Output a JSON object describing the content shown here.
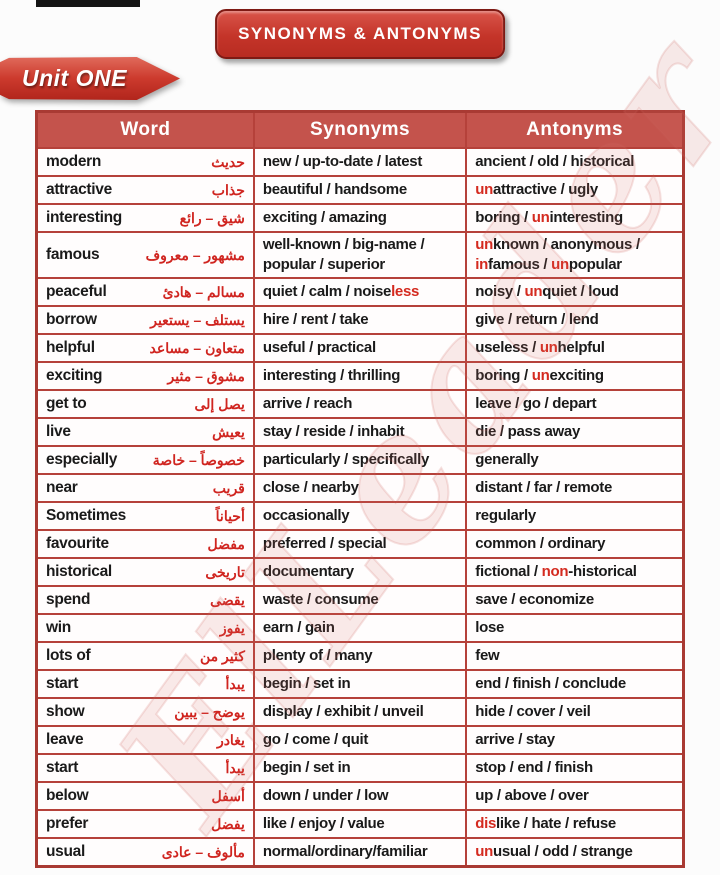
{
  "header": {
    "title": "SYNONYMS & ANTONYMS",
    "unit": "Unit ONE"
  },
  "watermark": "ElLeader",
  "colors": {
    "badge_red": "#c43429",
    "table_border_red": "#b5413a",
    "header_row_bg": "#c4534c",
    "highlight_red": "#d42a1f",
    "arabic_red": "#d02520",
    "text_black": "#1a1a1a"
  },
  "table": {
    "headers": [
      "Word",
      "Synonyms",
      "Antonyms"
    ],
    "rows": [
      {
        "word": "modern",
        "arabic": "حديث",
        "synonyms": "new / up-to-date / latest",
        "antonyms": "ancient / old / historical"
      },
      {
        "word": "attractive",
        "arabic": "جذاب",
        "synonyms": "beautiful / handsome",
        "antonyms": "[un]attractive / ugly"
      },
      {
        "word": "interesting",
        "arabic": "شيق – رائع",
        "synonyms": "exciting / amazing",
        "antonyms": "boring / [un]interesting"
      },
      {
        "word": "famous",
        "arabic": "مشهور – معروف",
        "synonyms": "well-known / big-name / popular / superior",
        "antonyms": "[un]known / anonymous / [in]famous / [un]popular"
      },
      {
        "word": "peaceful",
        "arabic": "مسالم – هادئ",
        "synonyms": "quiet / calm / noise[less]",
        "antonyms": "noisy / [un]quiet / loud"
      },
      {
        "word": "borrow",
        "arabic": "يستلف – يستعير",
        "synonyms": "hire / rent / take",
        "antonyms": "give / return / lend"
      },
      {
        "word": "helpful",
        "arabic": "متعاون – مساعد",
        "synonyms": "useful / practical",
        "antonyms": "useless / [un]helpful"
      },
      {
        "word": "exciting",
        "arabic": "مشوق – مثير",
        "synonyms": "interesting / thrilling",
        "antonyms": "boring / [un]exciting"
      },
      {
        "word": "get to",
        "arabic": "يصل إلى",
        "synonyms": "arrive / reach",
        "antonyms": "leave / go / depart"
      },
      {
        "word": "live",
        "arabic": "يعيش",
        "synonyms": "stay / reside / inhabit",
        "antonyms": "die / pass away"
      },
      {
        "word": "especially",
        "arabic": "خصوصاً – خاصة",
        "synonyms": "particularly / specifically",
        "antonyms": "generally"
      },
      {
        "word": "near",
        "arabic": "قريب",
        "synonyms": "close / nearby",
        "antonyms": "distant / far / remote"
      },
      {
        "word": "Sometimes",
        "arabic": "أحياناً",
        "synonyms": "occasionally",
        "antonyms": "regularly"
      },
      {
        "word": "favourite",
        "arabic": "مفضل",
        "synonyms": "preferred / special",
        "antonyms": "common / ordinary"
      },
      {
        "word": "historical",
        "arabic": "تاريخى",
        "synonyms": "documentary",
        "antonyms": "fictional / [non]-historical"
      },
      {
        "word": "spend",
        "arabic": "يقضى",
        "synonyms": "waste / consume",
        "antonyms": "save / economize"
      },
      {
        "word": "win",
        "arabic": "يفوز",
        "synonyms": "earn / gain",
        "antonyms": "lose"
      },
      {
        "word": "lots of",
        "arabic": "كثير من",
        "synonyms": "plenty of / many",
        "antonyms": "few"
      },
      {
        "word": "start",
        "arabic": "يبدأ",
        "synonyms": "begin / set in",
        "antonyms": "end / finish / conclude"
      },
      {
        "word": "show",
        "arabic": "يوضح – يبين",
        "synonyms": "display / exhibit / unveil",
        "antonyms": "hide / cover / veil"
      },
      {
        "word": "leave",
        "arabic": "يغادر",
        "synonyms": "go / come / quit",
        "antonyms": "arrive / stay"
      },
      {
        "word": "start",
        "arabic": "يبدأ",
        "synonyms": "begin / set in",
        "antonyms": "stop / end / finish"
      },
      {
        "word": "below",
        "arabic": "أسفل",
        "synonyms": "down / under / low",
        "antonyms": "up / above / over"
      },
      {
        "word": "prefer",
        "arabic": "يفضل",
        "synonyms": "like / enjoy / value",
        "antonyms": "[dis]like / hate / refuse"
      },
      {
        "word": "usual",
        "arabic": "مألوف – عادى",
        "synonyms": "normal/ordinary/familiar",
        "antonyms": "[un]usual / odd / strange"
      }
    ]
  }
}
